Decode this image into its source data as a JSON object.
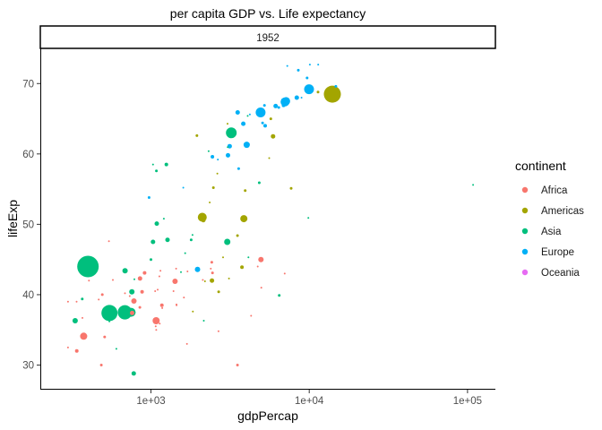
{
  "chart_data": {
    "type": "scatter",
    "title": "per capita GDP vs. Life expectancy",
    "facet_label": "1952",
    "xlabel": "gdpPercap",
    "ylabel": "lifeExp",
    "x_scale": "log10",
    "xlim": [
      200,
      150000
    ],
    "ylim": [
      26.5,
      75
    ],
    "x_ticks": [
      {
        "value": 1000,
        "label": "1e+03"
      },
      {
        "value": 10000,
        "label": "1e+04"
      },
      {
        "value": 100000,
        "label": "1e+05"
      }
    ],
    "y_ticks": [
      {
        "value": 30,
        "label": "30"
      },
      {
        "value": 40,
        "label": "40"
      },
      {
        "value": 50,
        "label": "50"
      },
      {
        "value": 60,
        "label": "60"
      },
      {
        "value": 70,
        "label": "70"
      }
    ],
    "grid": false,
    "legend": {
      "title": "continent",
      "position": "right",
      "entries": [
        "Africa",
        "Americas",
        "Asia",
        "Europe",
        "Oceania"
      ]
    },
    "colors": {
      "Africa": "#F8766D",
      "Americas": "#A3A500",
      "Asia": "#00BF7D",
      "Europe": "#00B0F6",
      "Oceania": "#E76BF3"
    },
    "size_note": "point area proportional to population",
    "series": [
      {
        "name": "Africa",
        "points": [
          [
            2449,
            43.1,
            1.5
          ],
          [
            3521,
            30.0,
            1.5
          ],
          [
            851,
            38.2,
            1.5
          ],
          [
            543,
            47.6,
            1
          ],
          [
            340,
            32.0,
            2
          ],
          [
            339,
            39.0,
            1
          ],
          [
            1173,
            38.5,
            2
          ],
          [
            1071,
            35.5,
            1
          ],
          [
            1179,
            38.1,
            1
          ],
          [
            1103,
            40.7,
            1
          ],
          [
            781,
            39.1,
            3
          ],
          [
            2126,
            42.1,
            1
          ],
          [
            1389,
            40.5,
            1
          ],
          [
            2670,
            34.8,
            1
          ],
          [
            1419,
            41.9,
            3
          ],
          [
            376,
            34.1,
            4
          ],
          [
            1080,
            35.0,
            1
          ],
          [
            4293,
            37.0,
            1
          ],
          [
            486,
            30.0,
            1.5
          ],
          [
            912,
            43.1,
            2
          ],
          [
            510,
            34.0,
            1.5
          ],
          [
            299,
            32.5,
            1
          ],
          [
            853,
            42.3,
            2.5
          ],
          [
            299,
            39.0,
            1
          ],
          [
            575,
            42.1,
            1
          ],
          [
            2388,
            43.7,
            1
          ],
          [
            1702,
            43.3,
            1
          ],
          [
            1443,
            43.7,
            1
          ],
          [
            369,
            36.7,
            1
          ],
          [
            1131,
            42.6,
            1
          ],
          [
            4955,
            45.0,
            3
          ],
          [
            1688,
            33.0,
            1
          ],
          [
            1451,
            38.5,
            1
          ],
          [
            1063,
            40.5,
            1
          ],
          [
            468,
            39.3,
            1
          ],
          [
            2424,
            44.6,
            1.5
          ],
          [
            761,
            37.4,
            2.5
          ],
          [
            1078,
            36.3,
            4
          ],
          [
            493,
            40.0,
            1.5
          ],
          [
            879,
            40.4,
            2
          ],
          [
            1450,
            38.6,
            1
          ],
          [
            1136,
            35.9,
            1
          ],
          [
            4725,
            44.0,
            1
          ],
          [
            1615,
            39.6,
            1
          ],
          [
            1148,
            43.4,
            1
          ],
          [
            7000,
            43.0,
            1
          ],
          [
            406,
            42.0,
            1
          ],
          [
            734,
            39.8,
            1
          ],
          [
            685,
            40.2,
            1
          ],
          [
            4980,
            41.0,
            1
          ]
        ]
      },
      {
        "name": "Americas",
        "points": [
          [
            5911,
            62.5,
            2.5
          ],
          [
            2677,
            40.4,
            1.5
          ],
          [
            2109,
            51.0,
            5
          ],
          [
            11367,
            68.8,
            1.5
          ],
          [
            3940,
            54.8,
            1.5
          ],
          [
            2144,
            50.6,
            2.5
          ],
          [
            2627,
            57.2,
            1
          ],
          [
            5587,
            59.4,
            1
          ],
          [
            2352,
            53.1,
            1
          ],
          [
            3522,
            48.4,
            1.5
          ],
          [
            2856,
            45.3,
            1
          ],
          [
            2428,
            42.0,
            2.5
          ],
          [
            1840,
            37.6,
            1
          ],
          [
            2194,
            41.9,
            1
          ],
          [
            3861,
            50.8,
            4
          ],
          [
            3112,
            42.3,
            1
          ],
          [
            2480,
            55.2,
            1.5
          ],
          [
            1952,
            62.6,
            1.5
          ],
          [
            3758,
            43.9,
            2
          ],
          [
            3048,
            64.3,
            1
          ],
          [
            5716,
            65.0,
            1.5
          ],
          [
            7690,
            55.1,
            1.5
          ],
          [
            13990,
            68.5,
            9.5
          ]
        ]
      },
      {
        "name": "Asia",
        "points": [
          [
            779,
            28.8,
            2.5
          ],
          [
            9867,
            50.9,
            1
          ],
          [
            684,
            37.5,
            5
          ],
          [
            368,
            39.4,
            1.5
          ],
          [
            400,
            44.0,
            12
          ],
          [
            3054,
            60.96,
            1
          ],
          [
            547,
            37.4,
            9
          ],
          [
            750,
            37.5,
            5
          ],
          [
            3035,
            47.5,
            3.5
          ],
          [
            4130,
            45.3,
            1
          ],
          [
            4087,
            65.4,
            1
          ],
          [
            3217,
            63.0,
            6
          ],
          [
            1547,
            43.2,
            1
          ],
          [
            1088,
            50.1,
            2.5
          ],
          [
            1031,
            47.5,
            2.5
          ],
          [
            108382,
            55.6,
            1
          ],
          [
            4835,
            55.9,
            1.5
          ],
          [
            1831,
            48.5,
            1
          ],
          [
            786,
            42.2,
            1
          ],
          [
            2157,
            36.3,
            1
          ],
          [
            546,
            36.2,
            1
          ],
          [
            686,
            43.4,
            3
          ],
          [
            1795,
            47.8,
            1.5
          ],
          [
            684,
            37.5,
            8
          ],
          [
            1273,
            47.8,
            2.5
          ],
          [
            6460,
            39.9,
            1.5
          ],
          [
            2316,
            60.4,
            1
          ],
          [
            1083,
            57.6,
            1.5
          ],
          [
            1644,
            45.9,
            1
          ],
          [
            1207,
            50.8,
            1
          ],
          [
            758,
            40.4,
            3
          ],
          [
            332,
            36.3,
            3
          ],
          [
            605,
            32.3,
            1
          ],
          [
            1252,
            58.5,
            2
          ],
          [
            1030,
            58.5,
            1
          ],
          [
            1000,
            45.0,
            1.5
          ]
        ]
      },
      {
        "name": "Europe",
        "points": [
          [
            1601,
            55.2,
            1
          ],
          [
            6137,
            66.8,
            2.5
          ],
          [
            8343,
            68.0,
            2.5
          ],
          [
            973,
            53.8,
            1.5
          ],
          [
            2444,
            59.6,
            2
          ],
          [
            3119,
            61.2,
            1.5
          ],
          [
            6876,
            66.9,
            2
          ],
          [
            9692,
            70.8,
            1.5
          ],
          [
            6424,
            66.6,
            1.5
          ],
          [
            7030,
            67.4,
            5
          ],
          [
            7144,
            67.5,
            4.5
          ],
          [
            3531,
            65.9,
            2.5
          ],
          [
            5264,
            64.0,
            2
          ],
          [
            7268,
            72.5,
            1
          ],
          [
            5210,
            66.9,
            1.5
          ],
          [
            4931,
            65.9,
            5.5
          ],
          [
            2648,
            59.2,
            1
          ],
          [
            8941,
            68.0,
            1
          ],
          [
            11390,
            72.7,
            1
          ],
          [
            10095,
            72.7,
            1
          ],
          [
            4029,
            61.3,
            3.5
          ],
          [
            3068,
            59.8,
            2.5
          ],
          [
            3145,
            61.1,
            2.5
          ],
          [
            3581,
            57.9,
            1.5
          ],
          [
            5075,
            64.4,
            1.5
          ],
          [
            4215,
            65.6,
            1
          ],
          [
            3834,
            64.3,
            2.5
          ],
          [
            8528,
            71.9,
            1.5
          ],
          [
            14734,
            69.6,
            1.5
          ],
          [
            1969,
            43.6,
            3
          ],
          [
            9980,
            69.2,
            5.5
          ]
        ]
      }
    ]
  }
}
